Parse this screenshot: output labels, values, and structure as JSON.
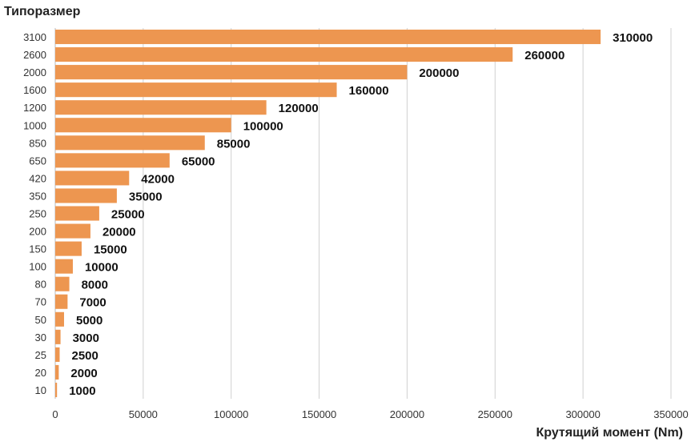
{
  "chart_data": {
    "type": "bar",
    "orientation": "horizontal",
    "title": "",
    "ylabel": "Типоразмер",
    "xlabel": "Крутящий момент (Nm)",
    "categories": [
      "3100",
      "2600",
      "2000",
      "1600",
      "1200",
      "1000",
      "850",
      "650",
      "420",
      "350",
      "250",
      "200",
      "150",
      "100",
      "80",
      "70",
      "50",
      "30",
      "25",
      "20",
      "10"
    ],
    "values": [
      310000,
      260000,
      200000,
      160000,
      120000,
      100000,
      85000,
      65000,
      42000,
      35000,
      25000,
      20000,
      15000,
      10000,
      8000,
      7000,
      5000,
      3000,
      2500,
      2000,
      1000
    ],
    "data_labels": [
      "310000",
      "260000",
      "200000",
      "160000",
      "120000",
      "100000",
      "85000",
      "65000",
      "42000",
      "35000",
      "25000",
      "20000",
      "15000",
      "10000",
      "8000",
      "7000",
      "5000",
      "3000",
      "2500",
      "2000",
      "1000"
    ],
    "xlim": [
      0,
      350000
    ],
    "xticks": [
      0,
      50000,
      100000,
      150000,
      200000,
      250000,
      300000,
      350000
    ],
    "xtick_labels": [
      "0",
      "50000",
      "100000",
      "150000",
      "200000",
      "250000",
      "300000",
      "350000"
    ],
    "grid": "vertical",
    "legend": "none",
    "colors": {
      "bar": "#ED9650",
      "grid": "#D0D0D0",
      "tick_text": "#333333",
      "label_text": "#111111"
    }
  }
}
